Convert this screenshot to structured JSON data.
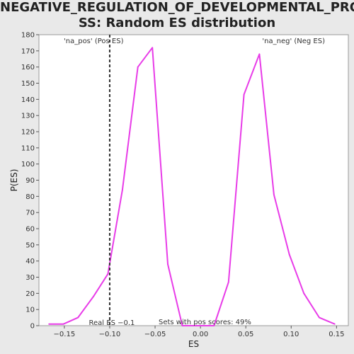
{
  "title_line1": "NEGATIVE_REGULATION_OF_DEVELOPMENTAL_PROCE",
  "title_line2": "SS: Random ES distribution",
  "chart_data": {
    "type": "line",
    "xlabel": "ES",
    "ylabel": "P(ES)",
    "xlim": [
      -0.178,
      0.163
    ],
    "ylim": [
      0,
      180
    ],
    "x_ticks": [
      -0.15,
      -0.1,
      -0.05,
      0.0,
      0.05,
      0.1,
      0.15
    ],
    "x_tick_labels": [
      "−0.15",
      "−0.10",
      "−0.05",
      "0.00",
      "0.05",
      "0.10",
      "0.15"
    ],
    "y_ticks": [
      0,
      10,
      20,
      30,
      40,
      50,
      60,
      70,
      80,
      90,
      100,
      110,
      120,
      130,
      140,
      150,
      160,
      170,
      180
    ],
    "series": [
      {
        "color": "#e83ce8",
        "points": [
          [
            -0.167,
            1
          ],
          [
            -0.151,
            1
          ],
          [
            -0.135,
            5
          ],
          [
            -0.118,
            18
          ],
          [
            -0.102,
            32
          ],
          [
            -0.086,
            84
          ],
          [
            -0.069,
            160
          ],
          [
            -0.053,
            172
          ],
          [
            -0.036,
            38
          ],
          [
            -0.02,
            0
          ],
          [
            -0.003,
            0
          ],
          [
            0.015,
            0
          ],
          [
            0.031,
            27
          ],
          [
            0.048,
            143
          ],
          [
            0.065,
            168
          ],
          [
            0.081,
            81
          ],
          [
            0.098,
            44
          ],
          [
            0.114,
            20
          ],
          [
            0.131,
            5
          ],
          [
            0.148,
            1
          ]
        ]
      }
    ],
    "real_es_line": {
      "x": -0.1,
      "label": "Real ES −0.1"
    },
    "annotations": {
      "pos_label": "'na_pos' (Pos ES)",
      "pos_color": "#e03030",
      "neg_label": "'na_neg' (Neg ES)",
      "neg_color": "#3030d0",
      "sets_with_pos": "Sets with pos scores: 49%"
    },
    "grid": false
  }
}
